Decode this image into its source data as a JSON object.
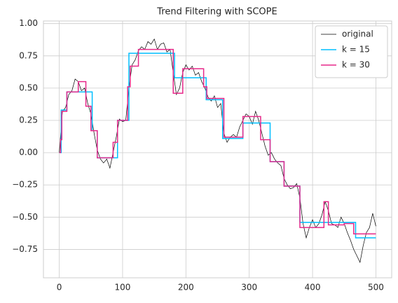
{
  "chart_data": {
    "type": "line",
    "title": "Trend Filtering with SCOPE",
    "xlim": [
      -25,
      525
    ],
    "ylim": [
      -0.97,
      1.02
    ],
    "xticks": [
      0,
      100,
      200,
      300,
      400,
      500
    ],
    "yticks": [
      {
        "value": -0.75,
        "label": "−0.75"
      },
      {
        "value": -0.5,
        "label": "−0.50"
      },
      {
        "value": -0.25,
        "label": "−0.25"
      },
      {
        "value": 0,
        "label": "0.00"
      },
      0.25,
      {
        "value": 0.5,
        "label": "0.50"
      },
      0.75,
      {
        "value": 1,
        "label": "1.00"
      }
    ],
    "grid": true,
    "legend": "upper right",
    "series": [
      {
        "name": "original",
        "color": "#000000",
        "step": false,
        "x": [
          0,
          5,
          10,
          15,
          20,
          25,
          30,
          35,
          40,
          45,
          50,
          55,
          60,
          65,
          70,
          75,
          80,
          85,
          90,
          95,
          100,
          105,
          110,
          115,
          120,
          125,
          130,
          135,
          140,
          145,
          150,
          155,
          160,
          165,
          170,
          175,
          180,
          185,
          190,
          195,
          200,
          205,
          210,
          215,
          220,
          225,
          230,
          235,
          240,
          245,
          250,
          255,
          260,
          265,
          270,
          275,
          280,
          285,
          290,
          295,
          300,
          305,
          310,
          315,
          320,
          325,
          330,
          335,
          340,
          345,
          350,
          355,
          360,
          365,
          370,
          375,
          380,
          385,
          390,
          395,
          400,
          405,
          410,
          415,
          420,
          425,
          430,
          435,
          440,
          445,
          450,
          455,
          460,
          465,
          470,
          475,
          480,
          485,
          490,
          495,
          500
        ],
        "values": [
          0.0,
          0.32,
          0.35,
          0.45,
          0.48,
          0.57,
          0.55,
          0.48,
          0.5,
          0.38,
          0.3,
          0.15,
          0.02,
          -0.05,
          -0.08,
          -0.05,
          -0.12,
          0.0,
          0.12,
          0.26,
          0.24,
          0.25,
          0.5,
          0.68,
          0.72,
          0.79,
          0.82,
          0.8,
          0.86,
          0.84,
          0.88,
          0.8,
          0.84,
          0.85,
          0.78,
          0.8,
          0.62,
          0.45,
          0.5,
          0.62,
          0.68,
          0.64,
          0.67,
          0.6,
          0.62,
          0.55,
          0.5,
          0.43,
          0.4,
          0.44,
          0.35,
          0.38,
          0.15,
          0.08,
          0.12,
          0.14,
          0.12,
          0.2,
          0.25,
          0.3,
          0.28,
          0.22,
          0.32,
          0.25,
          0.15,
          0.05,
          -0.02,
          0.0,
          -0.05,
          -0.08,
          -0.1,
          -0.2,
          -0.25,
          -0.28,
          -0.27,
          -0.24,
          -0.35,
          -0.55,
          -0.66,
          -0.58,
          -0.52,
          -0.58,
          -0.55,
          -0.48,
          -0.38,
          -0.45,
          -0.55,
          -0.56,
          -0.58,
          -0.5,
          -0.55,
          -0.62,
          -0.68,
          -0.75,
          -0.8,
          -0.85,
          -0.72,
          -0.62,
          -0.58,
          -0.47,
          -0.57
        ]
      },
      {
        "name": "k = 15",
        "color": "#00bfff",
        "step": true,
        "x": [
          0,
          3,
          12,
          52,
          60,
          92,
          110,
          182,
          232,
          258,
          290,
          333,
          355,
          380,
          468,
          500
        ],
        "values": [
          0,
          0.33,
          0.47,
          0.17,
          -0.04,
          0.25,
          0.77,
          0.58,
          0.41,
          0.11,
          0.23,
          -0.07,
          -0.26,
          -0.54,
          -0.66,
          -0.66
        ]
      },
      {
        "name": "k = 30",
        "color": "#e7298a",
        "step": true,
        "x": [
          0,
          2,
          4,
          12,
          30,
          42,
          50,
          60,
          85,
          92,
          108,
          112,
          125,
          180,
          195,
          228,
          233,
          260,
          290,
          318,
          333,
          355,
          380,
          418,
          425,
          450,
          465,
          500
        ],
        "values": [
          0,
          0.1,
          0.32,
          0.47,
          0.55,
          0.36,
          0.17,
          -0.04,
          0.08,
          0.25,
          0.51,
          0.67,
          0.8,
          0.46,
          0.65,
          0.51,
          0.42,
          0.12,
          0.28,
          0.1,
          -0.07,
          -0.26,
          -0.58,
          -0.38,
          -0.56,
          -0.55,
          -0.63,
          -0.63
        ]
      }
    ]
  }
}
